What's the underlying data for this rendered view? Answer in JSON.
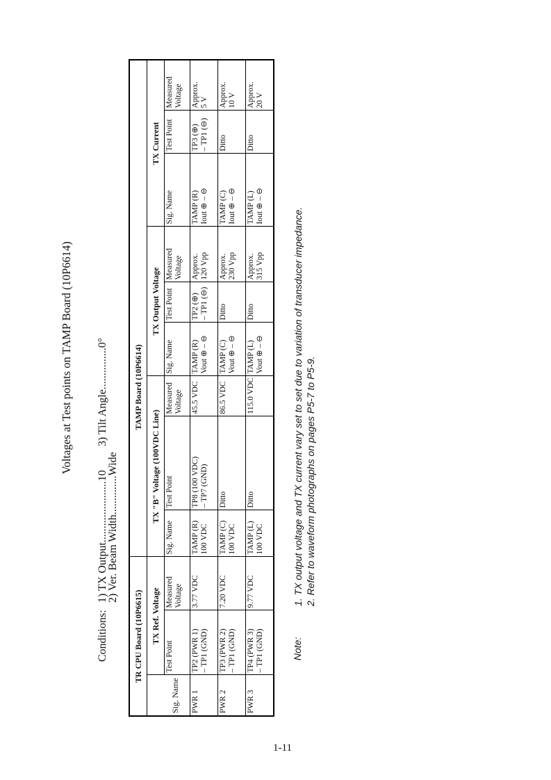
{
  "title": "Voltages at Test points on TAMP Board (10P6614)",
  "conditions": {
    "label": "Conditions:",
    "items": [
      "1) TX Output......................10",
      "2) Ver. Beam Width..............Wide",
      "3) Tilt Angle...............0°"
    ]
  },
  "table": {
    "boards": [
      "TR CPU Board (10P6615)",
      "TAMP Board (10P6614)"
    ],
    "groups": [
      "TX Ref. Voltage",
      "TX \"B\" Voltage (100VDC Line)",
      "TX Output Voltage",
      "TX Current"
    ],
    "headers": [
      "Sig. Name",
      "Test Point",
      "Measured Voltage",
      "Sig. Name",
      "Test Point",
      "Measured Voltage",
      "Sig. Name",
      "Test Point",
      "Measured Voltage",
      "Sig. Name",
      "Test Point",
      "Measured Voltage"
    ],
    "rows": [
      [
        [
          "PWR 1"
        ],
        [
          "TP2 (PWR 1)",
          "– TP1 (GND)"
        ],
        [
          "3.77 VDC"
        ],
        [
          "TAMP (R)",
          "100 VDC"
        ],
        [
          "TP8 (100 VDC)",
          "– TP7 (GND)"
        ],
        [
          "45.5 VDC"
        ],
        [
          "TAMP (R)",
          "Vout ⊕ – ⊖"
        ],
        [
          "TP2 (⊕)",
          "– TP1 (⊖)"
        ],
        [
          "Approx.",
          "120 Vpp"
        ],
        [
          "TAMP (R)",
          "Iout ⊕ – ⊖"
        ],
        [
          "TP3 (⊕)",
          "– TP1 (⊖)"
        ],
        [
          "Approx.",
          "5 V"
        ]
      ],
      [
        [
          "PWR 2"
        ],
        [
          "TP3 (PWR 2)",
          "– TP1 (GND)"
        ],
        [
          "7.20 VDC"
        ],
        [
          "TAMP (C)",
          "100 VDC"
        ],
        [
          "Ditto"
        ],
        [
          "86.5 VDC"
        ],
        [
          "TAMP (C)",
          "Vout ⊕ – ⊖"
        ],
        [
          "Ditto"
        ],
        [
          "Approx.",
          "230 Vpp"
        ],
        [
          "TAMP (C)",
          "Iout ⊕ – ⊖"
        ],
        [
          "Ditto"
        ],
        [
          "Approx.",
          "10 V"
        ]
      ],
      [
        [
          "PWR 3"
        ],
        [
          "TP4 (PWR 3)",
          "– TP1 (GND)"
        ],
        [
          "9.77 VDC"
        ],
        [
          "TAMP (L)",
          "100 VDC"
        ],
        [
          "Ditto"
        ],
        [
          "115.0 VDC"
        ],
        [
          "TAMP (L)",
          "Vout ⊕ – ⊖"
        ],
        [
          "Ditto"
        ],
        [
          "Approx.",
          "315 Vpp"
        ],
        [
          "TAMP (L)",
          "Iout ⊕ – ⊖"
        ],
        [
          "Ditto"
        ],
        [
          "Approx.",
          "20 V"
        ]
      ]
    ]
  },
  "note": {
    "label": "Note:",
    "lines": [
      "1. TX output voltage and TX current vary set to set due to variation of transducer impedance.",
      "2. Refer to waveform photographs on pages P5-7 to P5-9."
    ]
  },
  "page_number": "1-11"
}
